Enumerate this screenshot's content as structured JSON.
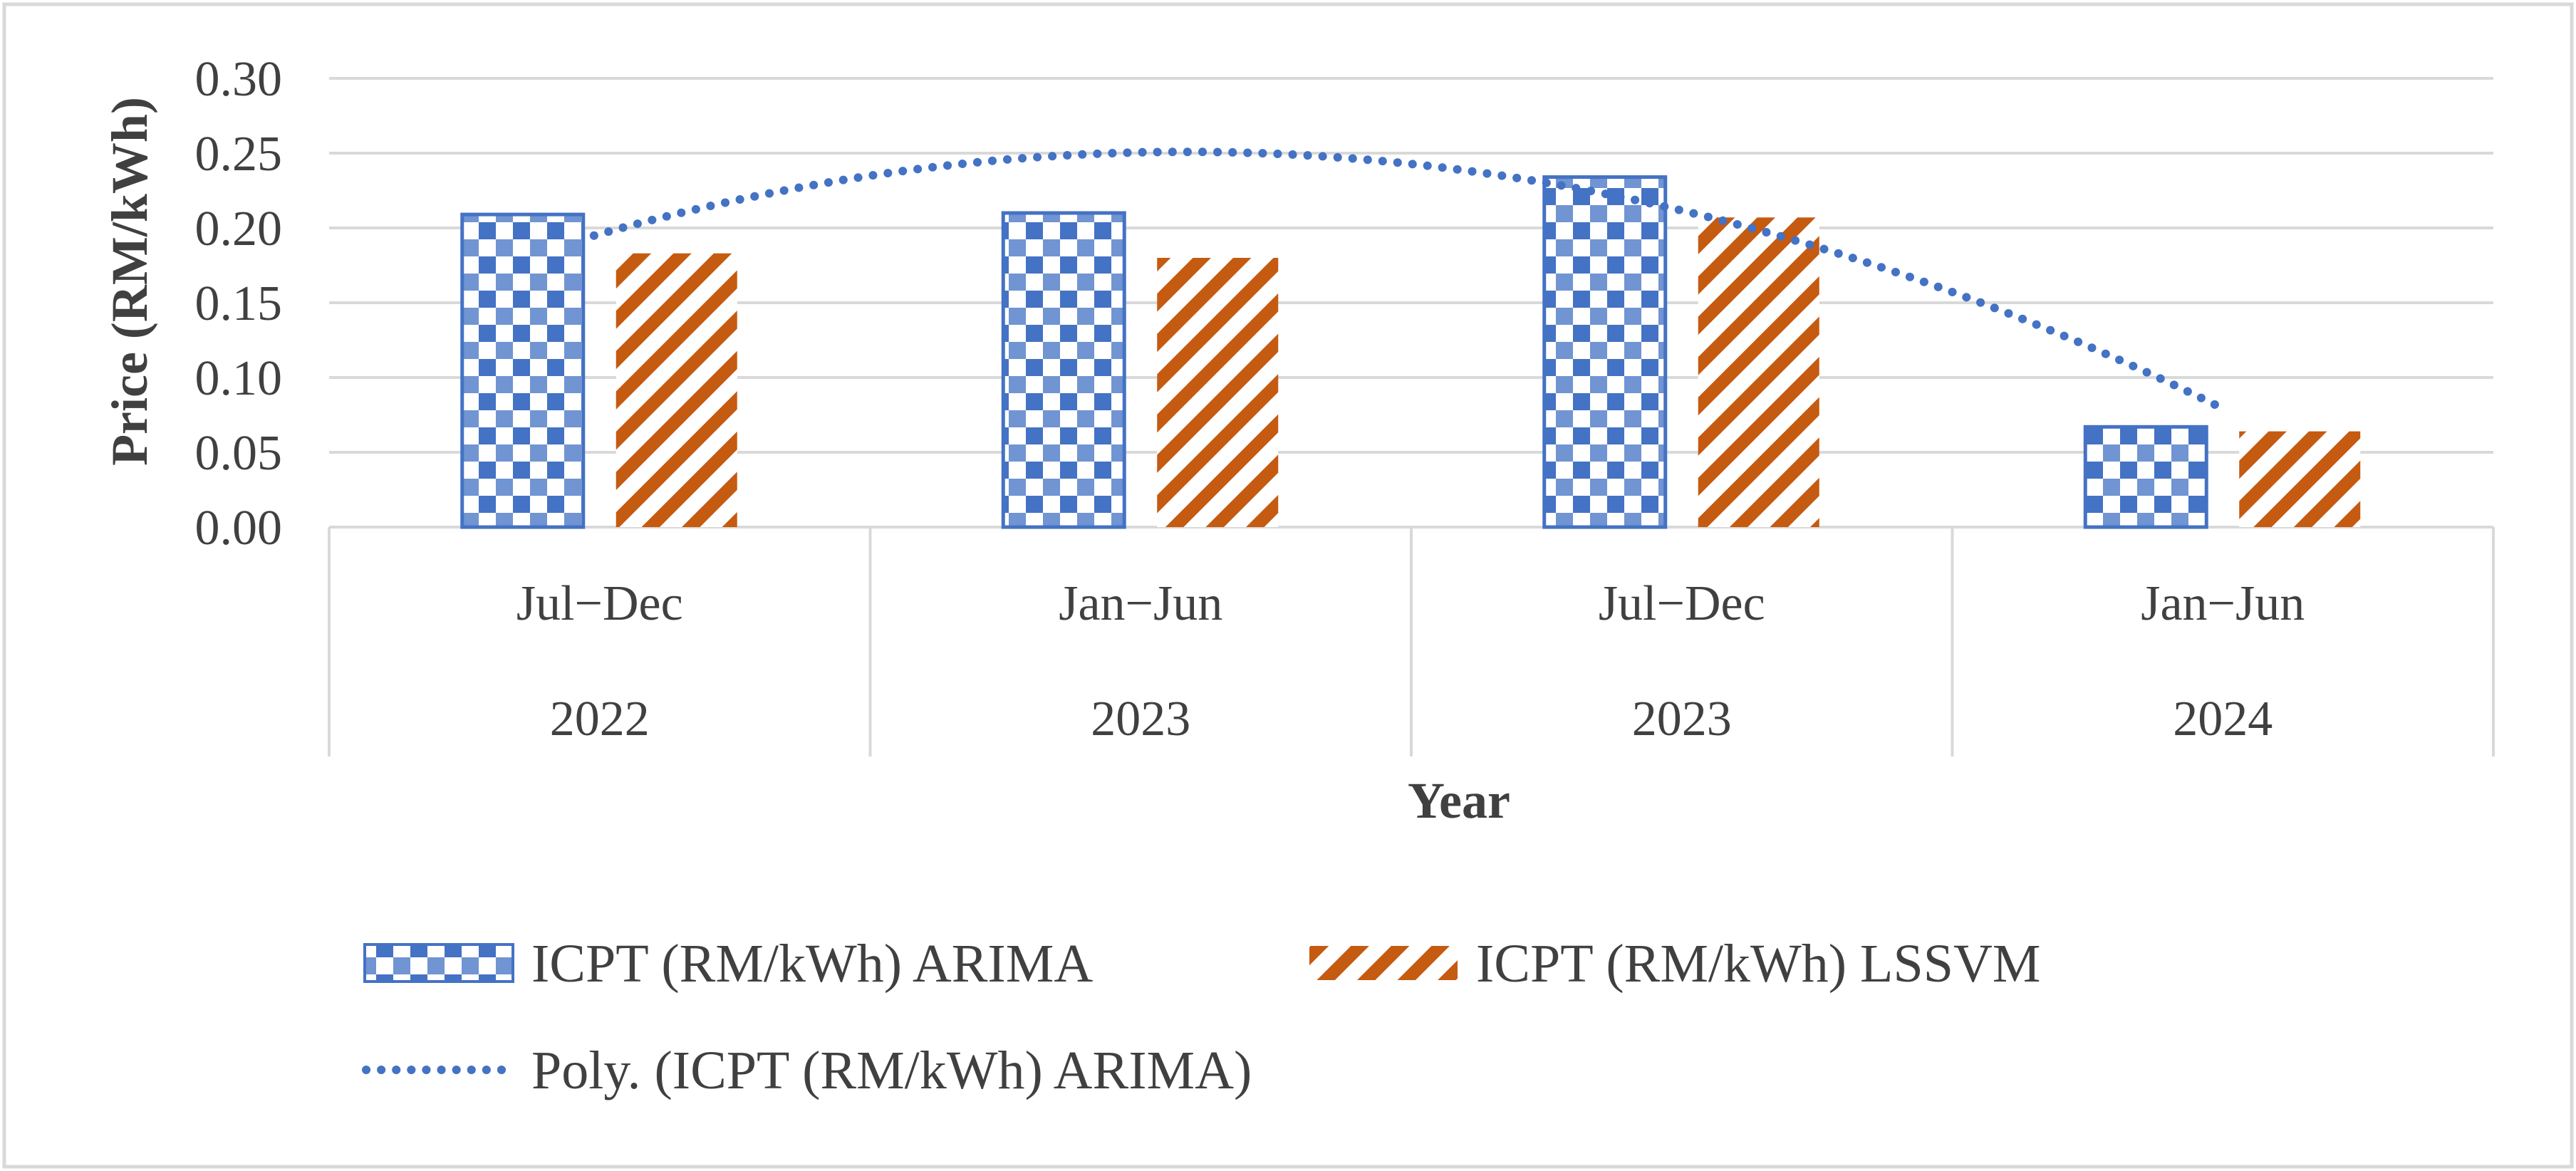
{
  "chart_data": {
    "type": "bar",
    "title": "",
    "xlabel": "Year",
    "ylabel": "Price (RM/kWh)",
    "ylim": [
      0,
      0.3
    ],
    "yticks": [
      "0.00",
      "0.05",
      "0.10",
      "0.15",
      "0.20",
      "0.25",
      "0.30"
    ],
    "categories": [
      {
        "period": "Jul−Dec",
        "year": "2022"
      },
      {
        "period": "Jan−Jun",
        "year": "2023"
      },
      {
        "period": "Jul−Dec",
        "year": "2023"
      },
      {
        "period": "Jan−Jun",
        "year": "2024"
      }
    ],
    "series": [
      {
        "name": "ICPT (RM/kWh) ARIMA",
        "color": "#4472c4",
        "pattern": "checker",
        "values": [
          0.209,
          0.21,
          0.234,
          0.067
        ]
      },
      {
        "name": "ICPT (RM/kWh) LSSVM",
        "color": "#c55a11",
        "pattern": "diagonal",
        "values": [
          0.183,
          0.18,
          0.207,
          0.064
        ]
      }
    ],
    "trendline": {
      "name": "Poly. (ICPT (RM/kWh) ARIMA)",
      "of_series": "ICPT (RM/kWh) ARIMA",
      "order": 2,
      "color": "#4472c4",
      "style": "dotted",
      "values": [
        0.198,
        0.241,
        0.222,
        0.078
      ]
    },
    "legend": {
      "placement": "bottom",
      "entries": [
        "ICPT (RM/kWh) ARIMA",
        "ICPT (RM/kWh) LSSVM",
        "Poly. (ICPT (RM/kWh) ARIMA)"
      ]
    },
    "grid": true
  }
}
